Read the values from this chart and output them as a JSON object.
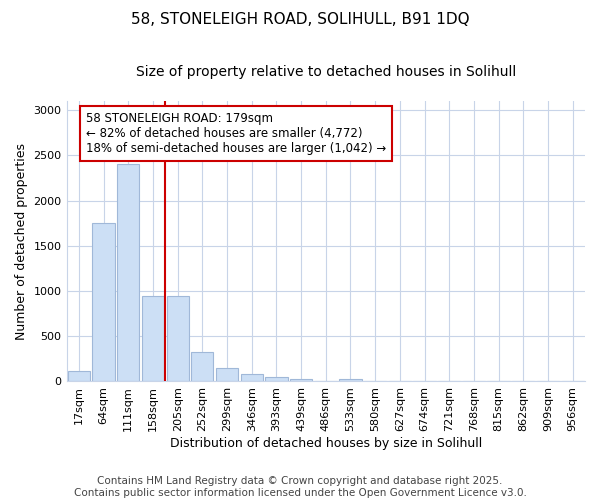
{
  "title_line1": "58, STONELEIGH ROAD, SOLIHULL, B91 1DQ",
  "title_line2": "Size of property relative to detached houses in Solihull",
  "xlabel": "Distribution of detached houses by size in Solihull",
  "ylabel": "Number of detached properties",
  "bar_labels": [
    "17sqm",
    "64sqm",
    "111sqm",
    "158sqm",
    "205sqm",
    "252sqm",
    "299sqm",
    "346sqm",
    "393sqm",
    "439sqm",
    "486sqm",
    "533sqm",
    "580sqm",
    "627sqm",
    "674sqm",
    "721sqm",
    "768sqm",
    "815sqm",
    "862sqm",
    "909sqm",
    "956sqm"
  ],
  "bar_values": [
    115,
    1750,
    2400,
    950,
    950,
    330,
    150,
    80,
    50,
    30,
    5,
    30,
    0,
    0,
    0,
    0,
    0,
    0,
    0,
    0,
    0
  ],
  "bar_color": "#ccdff5",
  "bar_edgecolor": "#a0b8d8",
  "bar_linewidth": 0.8,
  "vline_color": "#cc0000",
  "vline_linewidth": 1.5,
  "annotation_text": "58 STONELEIGH ROAD: 179sqm\n← 82% of detached houses are smaller (4,772)\n18% of semi-detached houses are larger (1,042) →",
  "annotation_box_edgecolor": "#cc0000",
  "annotation_fontsize": 8.5,
  "ylim": [
    0,
    3100
  ],
  "yticks": [
    0,
    500,
    1000,
    1500,
    2000,
    2500,
    3000
  ],
  "grid_color": "#c8d4e8",
  "background_color": "#ffffff",
  "footer_text": "Contains HM Land Registry data © Crown copyright and database right 2025.\nContains public sector information licensed under the Open Government Licence v3.0.",
  "title_fontsize": 11,
  "subtitle_fontsize": 10,
  "axis_label_fontsize": 9,
  "tick_fontsize": 8,
  "footer_fontsize": 7.5
}
